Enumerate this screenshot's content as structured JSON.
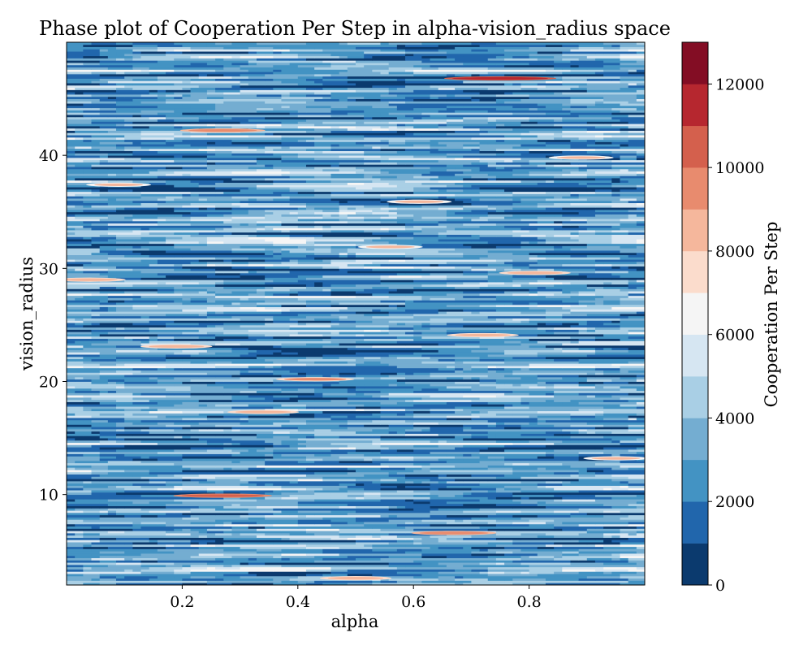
{
  "chart_data": {
    "type": "contour",
    "title": "Phase plot of Cooperation Per Step in alpha-vision_radius space",
    "xlabel": "alpha",
    "ylabel": "vision_radius",
    "colorbar_label": "Cooperation Per Step",
    "xlim": [
      0.0,
      1.0
    ],
    "ylim": [
      2,
      50
    ],
    "x_ticks": [
      0.2,
      0.4,
      0.6,
      0.8
    ],
    "x_tick_labels": [
      "0.2",
      "0.4",
      "0.6",
      "0.8"
    ],
    "y_ticks": [
      10,
      20,
      30,
      40
    ],
    "y_tick_labels": [
      "10",
      "20",
      "30",
      "40"
    ],
    "colorbar_range": [
      0,
      13000
    ],
    "colorbar_ticks": [
      0,
      2000,
      4000,
      6000,
      8000,
      10000,
      12000
    ],
    "colorbar_tick_labels": [
      "0",
      "2000",
      "4000",
      "6000",
      "8000",
      "10000",
      "12000"
    ],
    "levels": [
      0,
      1000,
      2000,
      3000,
      4000,
      5000,
      6000,
      7000,
      8000,
      9000,
      10000,
      11000,
      12000,
      13000
    ],
    "level_colors": [
      "#0b3a6e",
      "#2166ac",
      "#4393c3",
      "#74add1",
      "#a9cfe5",
      "#d6e6f2",
      "#f5f5f5",
      "#fbdccc",
      "#f5b79c",
      "#e88b6e",
      "#d4604d",
      "#b6272f",
      "#830d24"
    ],
    "colormap": "RdBu_r",
    "grid": false,
    "vision_radius_values": [
      2,
      3,
      4,
      5,
      6,
      7,
      8,
      9,
      10,
      11,
      12,
      13,
      14,
      15,
      16,
      17,
      18,
      19,
      20,
      21,
      22,
      23,
      24,
      25,
      26,
      27,
      28,
      29,
      30,
      31,
      32,
      33,
      34,
      35,
      36,
      37,
      38,
      39,
      40,
      41,
      42,
      43,
      44,
      45,
      46,
      47,
      48,
      49
    ],
    "typical_value_range": [
      500,
      5500
    ],
    "hotspots": [
      {
        "alpha": 0.75,
        "vision_radius": 46.8,
        "value": 11500
      },
      {
        "alpha": 0.27,
        "vision_radius": 9.9,
        "value": 10500
      },
      {
        "alpha": 0.27,
        "vision_radius": 42.2,
        "value": 9500
      },
      {
        "alpha": 0.04,
        "vision_radius": 29.0,
        "value": 8500
      },
      {
        "alpha": 0.43,
        "vision_radius": 20.2,
        "value": 9000
      },
      {
        "alpha": 0.19,
        "vision_radius": 23.1,
        "value": 8500
      },
      {
        "alpha": 0.56,
        "vision_radius": 31.9,
        "value": 8000
      },
      {
        "alpha": 0.81,
        "vision_radius": 29.6,
        "value": 8500
      },
      {
        "alpha": 0.67,
        "vision_radius": 6.6,
        "value": 9500
      },
      {
        "alpha": 0.95,
        "vision_radius": 13.2,
        "value": 8000
      },
      {
        "alpha": 0.61,
        "vision_radius": 35.9,
        "value": 8000
      },
      {
        "alpha": 0.34,
        "vision_radius": 17.3,
        "value": 8500
      },
      {
        "alpha": 0.89,
        "vision_radius": 39.8,
        "value": 8000
      },
      {
        "alpha": 0.5,
        "vision_radius": 2.6,
        "value": 8500
      },
      {
        "alpha": 0.09,
        "vision_radius": 37.4,
        "value": 8000
      },
      {
        "alpha": 0.72,
        "vision_radius": 24.1,
        "value": 8500
      }
    ]
  }
}
